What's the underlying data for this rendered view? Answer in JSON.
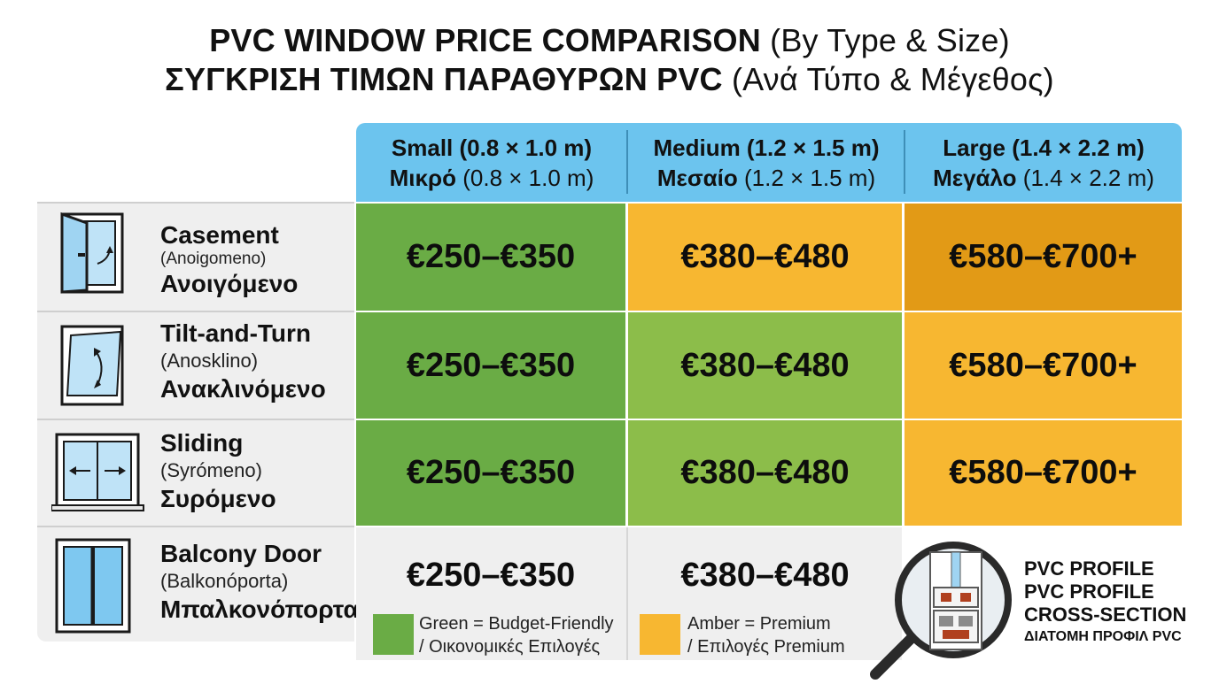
{
  "title": {
    "line1_bold": "PVC WINDOW PRICE COMPARISON",
    "line1_light": "(By Type & Size)",
    "line2_bold": "ΣΥΓΚΡΙΣΗ ΤΙΜΩΝ ΠΑΡΑΘΥΡΩΝ PVC",
    "line2_light": "(Ανά Τύπο & Μέγεθος)"
  },
  "columns": [
    {
      "en": "Small (0.8 × 1.0 m)",
      "gr_bold": "Μικρό",
      "gr_size": "(0.8 × 1.0 m)"
    },
    {
      "en": "Medium (1.2 × 1.5 m)",
      "gr_bold": "Μεσαίο",
      "gr_size": "(1.2 × 1.5 m)"
    },
    {
      "en": "Large (1.4 × 2.2 m)",
      "gr_bold": "Μεγάλο",
      "gr_size": "(1.4 × 2.2 m)"
    }
  ],
  "rows": [
    {
      "en": "Casement",
      "translit": "(Anoigomeno)",
      "gr": "Ανοιγόμενο",
      "icon": "casement-window-icon",
      "prices": [
        "€250–€350",
        "€380–€480",
        "€580–€700+"
      ]
    },
    {
      "en": "Tilt-and-Turn",
      "translit": "(Anosklino)",
      "gr": "Ανακλινόμενο",
      "icon": "tilt-turn-window-icon",
      "prices": [
        "€250–€350",
        "€380–€480",
        "€580–€700+"
      ]
    },
    {
      "en": "Sliding",
      "translit": "(Syrómeno)",
      "gr": "Συρόμενο",
      "icon": "sliding-window-icon",
      "prices": [
        "€250–€350",
        "€380–€480",
        "€580–€700+"
      ]
    },
    {
      "en": "Balcony Door",
      "translit": "(Balkonóporta)",
      "gr": "Μπαλκονόπορτα",
      "icon": "balcony-door-icon",
      "prices": [
        "€250–€350",
        "€380–€480"
      ]
    }
  ],
  "legend": [
    {
      "line1": "Green = Budget-Friendly",
      "line2": "/ Οικονομικές Επιλογές",
      "color": "#6aac45"
    },
    {
      "line1": "Amber = Premium",
      "line2": "/ Επιλογές Premium",
      "color": "#f7b731"
    }
  ],
  "profile": {
    "line1": "PVC PROFILE",
    "line2": "PVC PROFILE",
    "line3": "CROSS-SECTION",
    "line4": "ΔΙΑΤΟΜΗ ΠΡΟΦΙΛ PVC",
    "icon": "magnifier-profile-icon"
  },
  "colors": {
    "header": "#6cc4ee",
    "green": "#6aac45",
    "lime": "#8cbd4a",
    "amber": "#f7b731",
    "dark_amber": "#e29a16",
    "label_bg": "#efefef"
  }
}
